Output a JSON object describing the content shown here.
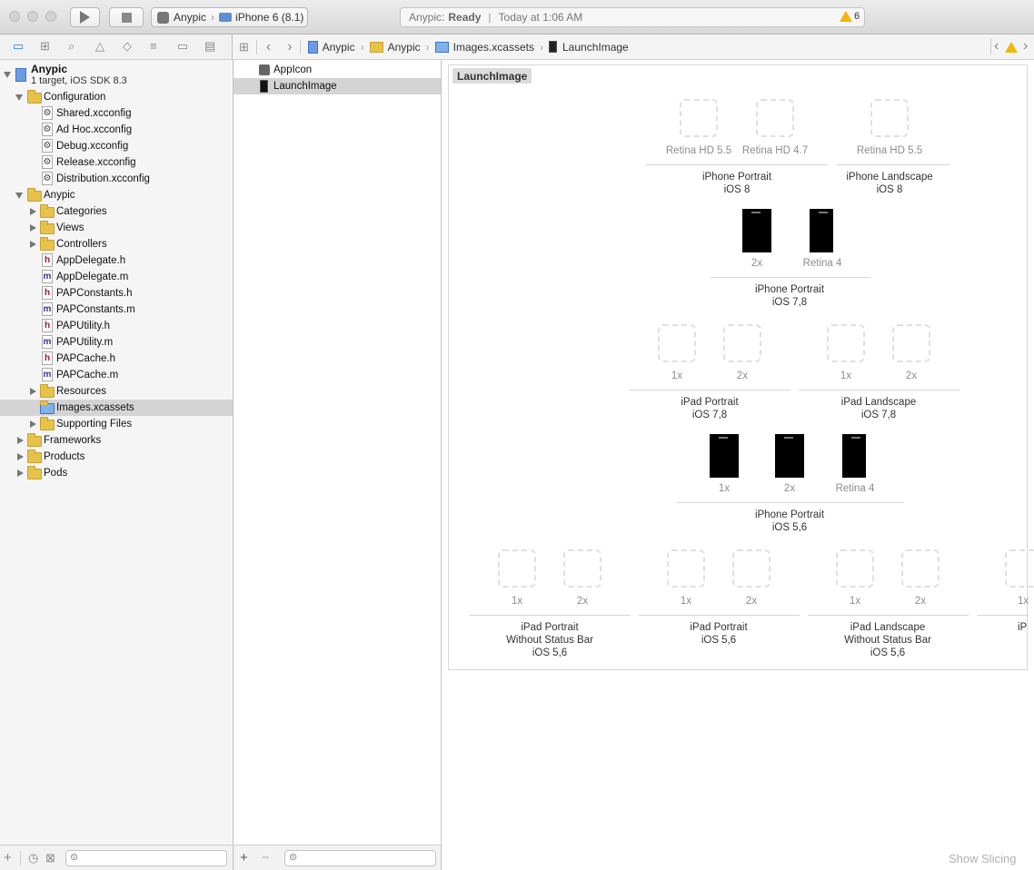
{
  "toolbar": {
    "scheme": "Anypic",
    "destination": "iPhone 6 (8.1)",
    "activity_project": "Anypic:",
    "activity_status": "Ready",
    "activity_time": "Today at 1:06 AM",
    "warning_count": "6"
  },
  "jumpbar": {
    "crumbs": [
      "Anypic",
      "Anypic",
      "Images.xcassets",
      "LaunchImage"
    ]
  },
  "navigator": {
    "project_name": "Anypic",
    "project_subtitle": "1 target, iOS SDK 8.3",
    "items": [
      {
        "label": "Configuration",
        "kind": "folder",
        "level": 1,
        "disclosure": "open"
      },
      {
        "label": "Shared.xcconfig",
        "kind": "xcconfig",
        "level": 2
      },
      {
        "label": "Ad Hoc.xcconfig",
        "kind": "xcconfig",
        "level": 2
      },
      {
        "label": "Debug.xcconfig",
        "kind": "xcconfig",
        "level": 2
      },
      {
        "label": "Release.xcconfig",
        "kind": "xcconfig",
        "level": 2
      },
      {
        "label": "Distribution.xcconfig",
        "kind": "xcconfig",
        "level": 2
      },
      {
        "label": "Anypic",
        "kind": "folder",
        "level": 1,
        "disclosure": "open"
      },
      {
        "label": "Categories",
        "kind": "folder",
        "level": 2,
        "disclosure": "closed"
      },
      {
        "label": "Views",
        "kind": "folder",
        "level": 2,
        "disclosure": "closed"
      },
      {
        "label": "Controllers",
        "kind": "folder",
        "level": 2,
        "disclosure": "closed"
      },
      {
        "label": "AppDelegate.h",
        "kind": "h",
        "level": 2
      },
      {
        "label": "AppDelegate.m",
        "kind": "m",
        "level": 2
      },
      {
        "label": "PAPConstants.h",
        "kind": "h",
        "level": 2
      },
      {
        "label": "PAPConstants.m",
        "kind": "m",
        "level": 2
      },
      {
        "label": "PAPUtility.h",
        "kind": "h",
        "level": 2
      },
      {
        "label": "PAPUtility.m",
        "kind": "m",
        "level": 2
      },
      {
        "label": "PAPCache.h",
        "kind": "h",
        "level": 2
      },
      {
        "label": "PAPCache.m",
        "kind": "m",
        "level": 2
      },
      {
        "label": "Resources",
        "kind": "folder",
        "level": 2,
        "disclosure": "closed"
      },
      {
        "label": "Images.xcassets",
        "kind": "xcassets",
        "level": 2,
        "selected": true
      },
      {
        "label": "Supporting Files",
        "kind": "folder",
        "level": 2,
        "disclosure": "closed"
      },
      {
        "label": "Frameworks",
        "kind": "folder",
        "level": 1,
        "disclosure": "closed"
      },
      {
        "label": "Products",
        "kind": "folder",
        "level": 1,
        "disclosure": "closed"
      },
      {
        "label": "Pods",
        "kind": "folder",
        "level": 1,
        "disclosure": "closed"
      }
    ]
  },
  "asset_list": {
    "items": [
      {
        "label": "AppIcon",
        "selected": false
      },
      {
        "label": "LaunchImage",
        "selected": true
      }
    ]
  },
  "launch_image": {
    "set_name": "LaunchImage",
    "row1": {
      "slots": [
        "Retina HD 5.5",
        "Retina HD 4.7",
        "Retina HD 5.5"
      ],
      "groups": [
        {
          "line1": "iPhone Portrait",
          "line2": "iOS 8"
        },
        {
          "line1": "iPhone Landscape",
          "line2": "iOS 8"
        }
      ]
    },
    "row2": {
      "slots": [
        "2x",
        "Retina 4"
      ],
      "group": {
        "line1": "iPhone Portrait",
        "line2": "iOS 7,8"
      }
    },
    "row3": {
      "slots": [
        "1x",
        "2x",
        "1x",
        "2x"
      ],
      "groups": [
        {
          "line1": "iPad Portrait",
          "line2": "iOS 7,8"
        },
        {
          "line1": "iPad Landscape",
          "line2": "iOS 7,8"
        }
      ]
    },
    "row4": {
      "slots": [
        "1x",
        "2x",
        "Retina 4"
      ],
      "group": {
        "line1": "iPhone Portrait",
        "line2": "iOS 5,6"
      }
    },
    "row5": {
      "slots": [
        "1x",
        "2x",
        "1x",
        "2x",
        "1x",
        "2x",
        "1x"
      ],
      "groups": [
        {
          "line1": "iPad Portrait",
          "line2": "Without Status Bar",
          "line3": "iOS 5,6"
        },
        {
          "line1": "iPad Portrait",
          "line2": "iOS 5,6"
        },
        {
          "line1": "iPad Landscape",
          "line2": "Without Status Bar",
          "line3": "iOS 5,6"
        },
        {
          "line1": "iP"
        }
      ]
    },
    "show_slicing": "Show Slicing"
  },
  "colors": {
    "selection": "#d4d4d4",
    "folder": "#e7c24b",
    "warning": "#f2b705",
    "h_icon": "#9b1c2e",
    "m_icon": "#3b2f8f"
  }
}
